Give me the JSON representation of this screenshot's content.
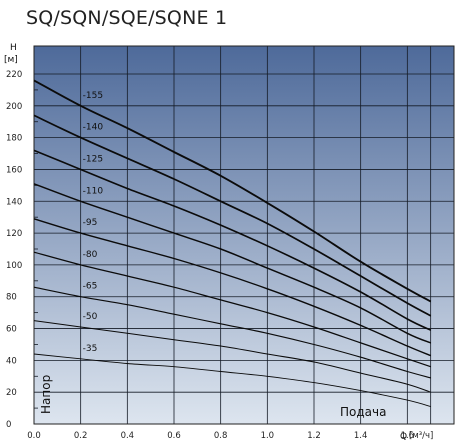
{
  "chart_data": {
    "type": "line",
    "title": "SQ/SQN/SQE/SQNE 1",
    "ylabel_top": "H",
    "ylabel_unit": "[м]",
    "xlabel_symbol": "Q",
    "xlabel_unit": "[м³/ч]",
    "y_inplot_label": "Напор",
    "x_inplot_label": "Подача",
    "xlim": [
      0,
      1.8
    ],
    "ylim": [
      0,
      220
    ],
    "grid": true,
    "x_ticks": [
      "0.0",
      "0.2",
      "0.4",
      "0.6",
      "0.8",
      "1.0",
      "1.2",
      "1.4",
      "1.6"
    ],
    "y_ticks": [
      "0",
      "20",
      "40",
      "60",
      "80",
      "100",
      "120",
      "140",
      "160",
      "180",
      "200",
      "220"
    ],
    "colors": {
      "plot_top": "#4e6a9a",
      "plot_bottom": "#dde5ef",
      "grid": "#151b26",
      "curve": "#0b0b0b"
    },
    "series": [
      {
        "name": "-35",
        "x": [
          0,
          0.2,
          0.4,
          0.6,
          0.8,
          1.0,
          1.2,
          1.4,
          1.6,
          1.7
        ],
        "y": [
          44,
          41,
          38,
          36,
          33,
          30,
          26,
          21,
          15,
          11
        ]
      },
      {
        "name": "-50",
        "x": [
          0,
          0.2,
          0.4,
          0.6,
          0.8,
          1.0,
          1.2,
          1.4,
          1.6,
          1.7
        ],
        "y": [
          65,
          61,
          57,
          53,
          49,
          44,
          39,
          32,
          25,
          20
        ]
      },
      {
        "name": "-65",
        "x": [
          0,
          0.2,
          0.4,
          0.6,
          0.8,
          1.0,
          1.2,
          1.4,
          1.6,
          1.7
        ],
        "y": [
          86,
          80,
          75,
          69,
          63,
          57,
          50,
          42,
          33,
          29
        ]
      },
      {
        "name": "-80",
        "x": [
          0,
          0.2,
          0.4,
          0.6,
          0.8,
          1.0,
          1.2,
          1.4,
          1.6,
          1.7
        ],
        "y": [
          108,
          100,
          93,
          86,
          78,
          70,
          61,
          51,
          41,
          36
        ]
      },
      {
        "name": "-95",
        "x": [
          0,
          0.2,
          0.4,
          0.6,
          0.8,
          1.0,
          1.2,
          1.4,
          1.6,
          1.7
        ],
        "y": [
          129,
          120,
          112,
          104,
          95,
          85,
          74,
          62,
          49,
          43
        ]
      },
      {
        "name": "-110",
        "x": [
          0,
          0.2,
          0.4,
          0.6,
          0.8,
          1.0,
          1.2,
          1.4,
          1.6,
          1.7
        ],
        "y": [
          151,
          140,
          130,
          120,
          110,
          98,
          86,
          73,
          57,
          51
        ]
      },
      {
        "name": "-125",
        "x": [
          0,
          0.2,
          0.4,
          0.6,
          0.8,
          1.0,
          1.2,
          1.4,
          1.6,
          1.7
        ],
        "y": [
          172,
          160,
          148,
          137,
          125,
          112,
          98,
          83,
          66,
          59
        ]
      },
      {
        "name": "-140",
        "x": [
          0,
          0.2,
          0.4,
          0.6,
          0.8,
          1.0,
          1.2,
          1.4,
          1.6,
          1.7
        ],
        "y": [
          194,
          180,
          167,
          154,
          140,
          126,
          110,
          93,
          76,
          68
        ]
      },
      {
        "name": "-155",
        "x": [
          0,
          0.2,
          0.4,
          0.6,
          0.8,
          1.0,
          1.2,
          1.4,
          1.6,
          1.7
        ],
        "y": [
          216,
          200,
          186,
          171,
          156,
          139,
          121,
          102,
          85,
          77
        ]
      }
    ]
  }
}
